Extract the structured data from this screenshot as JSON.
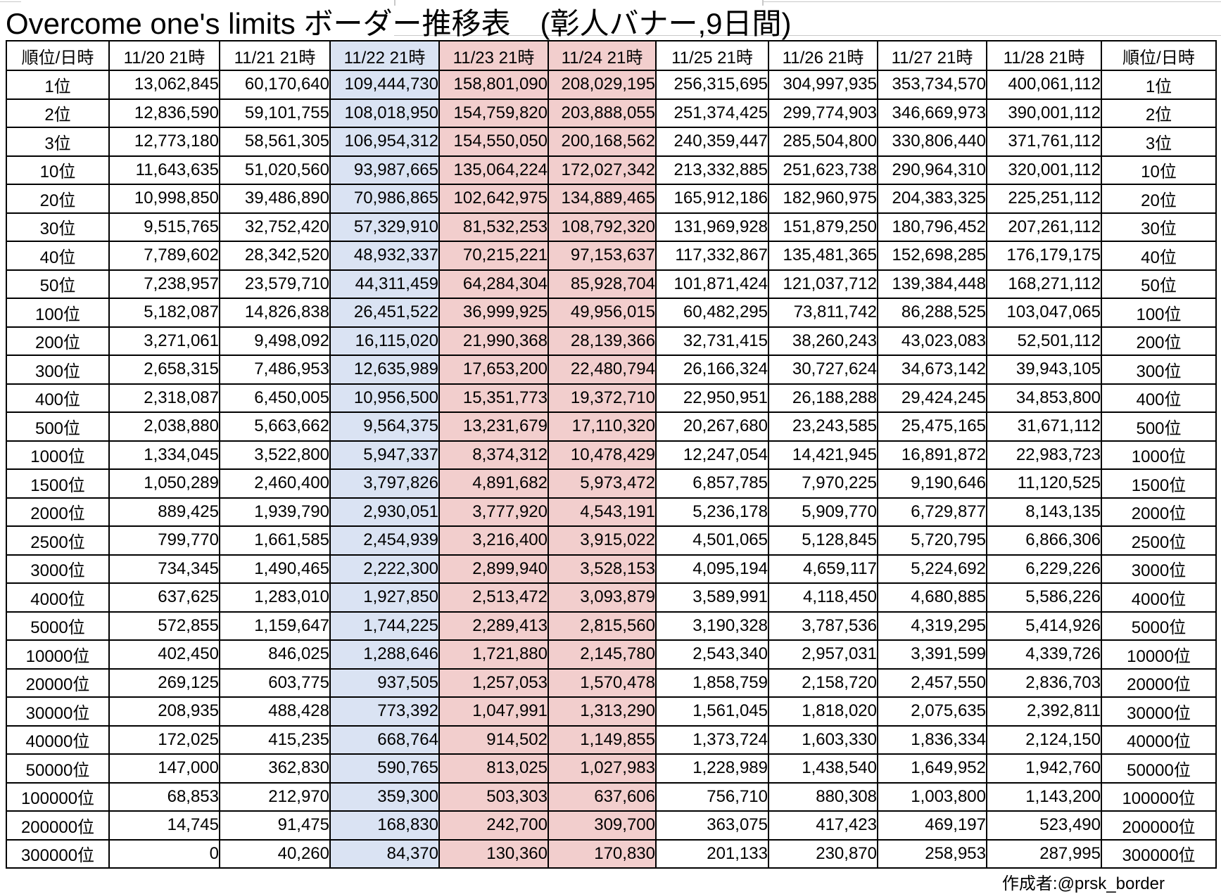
{
  "title": "Overcome one's limits ボーダー推移表　(彰人バナー,9日間)",
  "credit": "作成者:@prsk_border",
  "chart_data": {
    "type": "table",
    "title": "Overcome one's limits ボーダー推移表　(彰人バナー,9日間)",
    "rank_header": "順位/日時",
    "colors": {
      "blue_highlight": "#dae3f3",
      "pink_highlight": "#f2cecd",
      "border": "#000000"
    },
    "columns": [
      {
        "label": "11/20 21時",
        "highlight": "none"
      },
      {
        "label": "11/21 21時",
        "highlight": "none"
      },
      {
        "label": "11/22 21時",
        "highlight": "blue"
      },
      {
        "label": "11/23 21時",
        "highlight": "pink"
      },
      {
        "label": "11/24 21時",
        "highlight": "pink"
      },
      {
        "label": "11/25 21時",
        "highlight": "none"
      },
      {
        "label": "11/26 21時",
        "highlight": "none"
      },
      {
        "label": "11/27 21時",
        "highlight": "none"
      },
      {
        "label": "11/28 21時",
        "highlight": "none"
      }
    ],
    "rows": [
      {
        "rank": "1位",
        "values": [
          "13,062,845",
          "60,170,640",
          "109,444,730",
          "158,801,090",
          "208,029,195",
          "256,315,695",
          "304,997,935",
          "353,734,570",
          "400,061,112"
        ]
      },
      {
        "rank": "2位",
        "values": [
          "12,836,590",
          "59,101,755",
          "108,018,950",
          "154,759,820",
          "203,888,055",
          "251,374,425",
          "299,774,903",
          "346,669,973",
          "390,001,112"
        ]
      },
      {
        "rank": "3位",
        "values": [
          "12,773,180",
          "58,561,305",
          "106,954,312",
          "154,550,050",
          "200,168,562",
          "240,359,447",
          "285,504,800",
          "330,806,440",
          "371,761,112"
        ]
      },
      {
        "rank": "10位",
        "values": [
          "11,643,635",
          "51,020,560",
          "93,987,665",
          "135,064,224",
          "172,027,342",
          "213,332,885",
          "251,623,738",
          "290,964,310",
          "320,001,112"
        ]
      },
      {
        "rank": "20位",
        "values": [
          "10,998,850",
          "39,486,890",
          "70,986,865",
          "102,642,975",
          "134,889,465",
          "165,912,186",
          "182,960,975",
          "204,383,325",
          "225,251,112"
        ]
      },
      {
        "rank": "30位",
        "values": [
          "9,515,765",
          "32,752,420",
          "57,329,910",
          "81,532,253",
          "108,792,320",
          "131,969,928",
          "151,879,250",
          "180,796,452",
          "207,261,112"
        ]
      },
      {
        "rank": "40位",
        "values": [
          "7,789,602",
          "28,342,520",
          "48,932,337",
          "70,215,221",
          "97,153,637",
          "117,332,867",
          "135,481,365",
          "152,698,285",
          "176,179,175"
        ]
      },
      {
        "rank": "50位",
        "values": [
          "7,238,957",
          "23,579,710",
          "44,311,459",
          "64,284,304",
          "85,928,704",
          "101,871,424",
          "121,037,712",
          "139,384,448",
          "168,271,112"
        ]
      },
      {
        "rank": "100位",
        "values": [
          "5,182,087",
          "14,826,838",
          "26,451,522",
          "36,999,925",
          "49,956,015",
          "60,482,295",
          "73,811,742",
          "86,288,525",
          "103,047,065"
        ]
      },
      {
        "rank": "200位",
        "values": [
          "3,271,061",
          "9,498,092",
          "16,115,020",
          "21,990,368",
          "28,139,366",
          "32,731,415",
          "38,260,243",
          "43,023,083",
          "52,501,112"
        ]
      },
      {
        "rank": "300位",
        "values": [
          "2,658,315",
          "7,486,953",
          "12,635,989",
          "17,653,200",
          "22,480,794",
          "26,166,324",
          "30,727,624",
          "34,673,142",
          "39,943,105"
        ]
      },
      {
        "rank": "400位",
        "values": [
          "2,318,087",
          "6,450,005",
          "10,956,500",
          "15,351,773",
          "19,372,710",
          "22,950,951",
          "26,188,288",
          "29,424,245",
          "34,853,800"
        ]
      },
      {
        "rank": "500位",
        "values": [
          "2,038,880",
          "5,663,662",
          "9,564,375",
          "13,231,679",
          "17,110,320",
          "20,267,680",
          "23,243,585",
          "25,475,165",
          "31,671,112"
        ]
      },
      {
        "rank": "1000位",
        "values": [
          "1,334,045",
          "3,522,800",
          "5,947,337",
          "8,374,312",
          "10,478,429",
          "12,247,054",
          "14,421,945",
          "16,891,872",
          "22,983,723"
        ]
      },
      {
        "rank": "1500位",
        "values": [
          "1,050,289",
          "2,460,400",
          "3,797,826",
          "4,891,682",
          "5,973,472",
          "6,857,785",
          "7,970,225",
          "9,190,646",
          "11,120,525"
        ]
      },
      {
        "rank": "2000位",
        "values": [
          "889,425",
          "1,939,790",
          "2,930,051",
          "3,777,920",
          "4,543,191",
          "5,236,178",
          "5,909,770",
          "6,729,877",
          "8,143,135"
        ]
      },
      {
        "rank": "2500位",
        "values": [
          "799,770",
          "1,661,585",
          "2,454,939",
          "3,216,400",
          "3,915,022",
          "4,501,065",
          "5,128,845",
          "5,720,795",
          "6,866,306"
        ]
      },
      {
        "rank": "3000位",
        "values": [
          "734,345",
          "1,490,465",
          "2,222,300",
          "2,899,940",
          "3,528,153",
          "4,095,194",
          "4,659,117",
          "5,224,692",
          "6,229,226"
        ]
      },
      {
        "rank": "4000位",
        "values": [
          "637,625",
          "1,283,010",
          "1,927,850",
          "2,513,472",
          "3,093,879",
          "3,589,991",
          "4,118,450",
          "4,680,885",
          "5,586,226"
        ]
      },
      {
        "rank": "5000位",
        "values": [
          "572,855",
          "1,159,647",
          "1,744,225",
          "2,289,413",
          "2,815,560",
          "3,190,328",
          "3,787,536",
          "4,319,295",
          "5,414,926"
        ]
      },
      {
        "rank": "10000位",
        "values": [
          "402,450",
          "846,025",
          "1,288,646",
          "1,721,880",
          "2,145,780",
          "2,543,340",
          "2,957,031",
          "3,391,599",
          "4,339,726"
        ]
      },
      {
        "rank": "20000位",
        "values": [
          "269,125",
          "603,775",
          "937,505",
          "1,257,053",
          "1,570,478",
          "1,858,759",
          "2,158,720",
          "2,457,550",
          "2,836,703"
        ]
      },
      {
        "rank": "30000位",
        "values": [
          "208,935",
          "488,428",
          "773,392",
          "1,047,991",
          "1,313,290",
          "1,561,045",
          "1,818,020",
          "2,075,635",
          "2,392,811"
        ]
      },
      {
        "rank": "40000位",
        "values": [
          "172,025",
          "415,235",
          "668,764",
          "914,502",
          "1,149,855",
          "1,373,724",
          "1,603,330",
          "1,836,334",
          "2,124,150"
        ]
      },
      {
        "rank": "50000位",
        "values": [
          "147,000",
          "362,830",
          "590,765",
          "813,025",
          "1,027,983",
          "1,228,989",
          "1,438,540",
          "1,649,952",
          "1,942,760"
        ]
      },
      {
        "rank": "100000位",
        "values": [
          "68,853",
          "212,970",
          "359,300",
          "503,303",
          "637,606",
          "756,710",
          "880,308",
          "1,003,800",
          "1,143,200"
        ]
      },
      {
        "rank": "200000位",
        "values": [
          "14,745",
          "91,475",
          "168,830",
          "242,700",
          "309,700",
          "363,075",
          "417,423",
          "469,197",
          "523,490"
        ]
      },
      {
        "rank": "300000位",
        "values": [
          "0",
          "40,260",
          "84,370",
          "130,360",
          "170,830",
          "201,133",
          "230,870",
          "258,953",
          "287,995"
        ]
      }
    ]
  }
}
